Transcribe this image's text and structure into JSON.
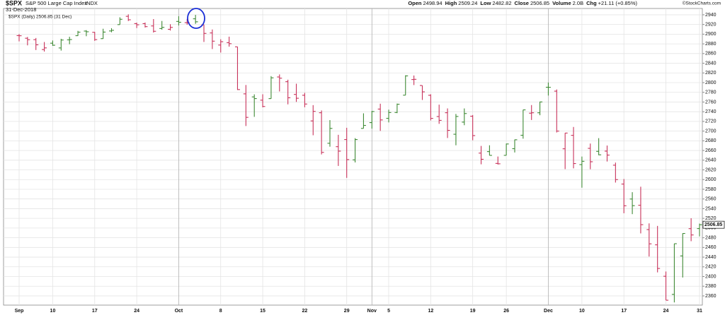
{
  "chart_data": {
    "type": "ohlc",
    "title": "S&P 500 Large Cap Index",
    "exchange": "INDX",
    "date": "31-Dec-2018",
    "quote": [
      {
        "label": "Open",
        "value": "2498.94"
      },
      {
        "label": "High",
        "value": "2509.24"
      },
      {
        "label": "Low",
        "value": "2482.82"
      },
      {
        "label": "Close",
        "value": "2506.85"
      },
      {
        "label": "Volume",
        "value": "2.0B"
      },
      {
        "label": "Chg",
        "value": "+21.11 (+0.85%)"
      }
    ],
    "credit": "©StockCharts.com",
    "legend": "$SPX (Daily) 2506.85 (31 Dec)",
    "up_color": "#3f8a35",
    "down_color": "#c8325a",
    "categories": [
      "Sep",
      null,
      null,
      null,
      "10",
      null,
      null,
      null,
      null,
      "17",
      null,
      null,
      null,
      null,
      "24",
      null,
      null,
      null,
      null,
      "Oct",
      null,
      null,
      null,
      null,
      "8",
      null,
      null,
      null,
      null,
      "15",
      null,
      null,
      null,
      null,
      "22",
      null,
      null,
      null,
      null,
      "29",
      null,
      null,
      "Nov",
      null,
      "5",
      null,
      null,
      null,
      null,
      "12",
      null,
      null,
      null,
      null,
      "19",
      null,
      null,
      null,
      "26",
      null,
      null,
      null,
      null,
      "Dec",
      null,
      null,
      null,
      "10",
      null,
      null,
      null,
      null,
      "17",
      null,
      null,
      null,
      null,
      "24",
      null,
      null,
      null,
      "31"
    ],
    "month_starts": [
      "Oct",
      "Nov",
      "Dec"
    ],
    "series": [
      {
        "name": "$SPX",
        "open": [
          2896.96,
          2891.59,
          2888.64,
          2868.26,
          2881.39,
          2871.57,
          2888.29,
          2896.85,
          2906.38,
          2903.83,
          2890.74,
          2906.6,
          2919.73,
          2936.76,
          2921.83,
          2921.75,
          2916.98,
          2911.65,
          2910.03,
          2926.29,
          2923.8,
          2931.69,
          2919.35,
          2902.54,
          2877.53,
          2882.51,
          2873.9,
          2776.87,
          2770.54,
          2763.83,
          2767.05,
          2811.67,
          2802,
          2775.66,
          2773.94,
          2721.03,
          2737.87,
          2674.88,
          2667.86,
          2682.65,
          2640.68,
          2705.6,
          2717.58,
          2745.45,
          2726.37,
          2738.4,
          2774.13,
          2806.38,
          2794.1,
          2773.93,
          2730.05,
          2737.9,
          2693.52,
          2718.54,
          2730.74,
          2654.6,
          2657.74,
          2633.36,
          2649.97,
          2663.75,
          2691.45,
          2736.97,
          2737.76,
          2790.5,
          2782.43,
          2663.51,
          2691.26,
          2630.86,
          2664.44,
          2658.23,
          2658.7,
          2629.68,
          2590.75,
          2559.9,
          2547.05,
          2496.77,
          2465.38,
          2400.56,
          2363.12,
          2442.5,
          2498.77,
          2498.94
        ],
        "high": [
          2900.18,
          2894.21,
          2892.05,
          2883.81,
          2886.93,
          2890.43,
          2894.65,
          2906.76,
          2908.3,
          2904.65,
          2911.17,
          2912.36,
          2934.8,
          2940.91,
          2923.79,
          2923.95,
          2931.15,
          2927.22,
          2920.53,
          2937.06,
          2931.42,
          2939.86,
          2919.78,
          2909.64,
          2889.45,
          2894.83,
          2874.02,
          2795.14,
          2775.77,
          2775.99,
          2813.46,
          2816.94,
          2806.04,
          2797.77,
          2778.94,
          2753.59,
          2742.59,
          2722.7,
          2692.38,
          2706.85,
          2685.43,
          2736.69,
          2741.67,
          2756.55,
          2744.27,
          2756.82,
          2815.15,
          2814.75,
          2794.1,
          2775.99,
          2754.6,
          2746.8,
          2735.38,
          2746.75,
          2733.16,
          2669.44,
          2670.73,
          2647.55,
          2674.35,
          2682.53,
          2744,
          2753.75,
          2760.88,
          2800.18,
          2785.93,
          2696.15,
          2708.54,
          2647.51,
          2674.35,
          2685.44,
          2670.19,
          2635.07,
          2601.13,
          2573.99,
          2585.29,
          2509.63,
          2504.41,
          2410.34,
          2467.76,
          2489.1,
          2520.27,
          2509.24
        ],
        "low": [
          2885.13,
          2876.92,
          2867.29,
          2864.12,
          2875.94,
          2866.17,
          2879.2,
          2896.39,
          2895.77,
          2886.16,
          2890.43,
          2903.82,
          2919.73,
          2927.11,
          2912.63,
          2913.7,
          2903.28,
          2909.27,
          2907.5,
          2917.91,
          2919.37,
          2921.36,
          2883.92,
          2869.29,
          2862.08,
          2874.27,
          2784.86,
          2710.51,
          2729.44,
          2749.03,
          2766.91,
          2781.81,
          2755.18,
          2760.27,
          2749.22,
          2691.43,
          2651.89,
          2667.84,
          2628.16,
          2603.54,
          2635.34,
          2705.6,
          2705.06,
          2700.44,
          2717.94,
          2737.08,
          2774.13,
          2794.99,
          2764.24,
          2722,
          2714.98,
          2685.75,
          2670.75,
          2712.16,
          2681.09,
          2631.52,
          2649.82,
          2631.09,
          2649.97,
          2655.89,
          2684.38,
          2722.94,
          2732.76,
          2773.38,
          2697.18,
          2621.53,
          2623.14,
          2583.23,
          2621.3,
          2650.26,
          2637.27,
          2593.84,
          2530.54,
          2528.71,
          2488.96,
          2441.18,
          2408.55,
          2351.1,
          2346.58,
          2397.94,
          2472.89,
          2482.82
        ],
        "close": [
          2896.72,
          2888.6,
          2878.05,
          2871.68,
          2877.13,
          2887.89,
          2888.92,
          2904.18,
          2904.98,
          2888.8,
          2904.31,
          2907.95,
          2930.75,
          2929.67,
          2919.37,
          2915.56,
          2905.97,
          2914,
          2913.98,
          2924.59,
          2923.43,
          2925.51,
          2901.61,
          2885.57,
          2884.43,
          2880.34,
          2785.68,
          2728.37,
          2767.13,
          2750.79,
          2809.92,
          2809.21,
          2768.78,
          2767.78,
          2755.88,
          2740.69,
          2656.1,
          2705.57,
          2658.69,
          2641.25,
          2682.63,
          2711.74,
          2740.37,
          2723.06,
          2738.31,
          2755.45,
          2813.89,
          2806.83,
          2781.01,
          2726.22,
          2722.18,
          2701.58,
          2730.2,
          2736.27,
          2690.73,
          2641.89,
          2649.93,
          2632.56,
          2673.45,
          2682.17,
          2743.79,
          2737.8,
          2760.17,
          2790.37,
          2700.06,
          2695.95,
          2633.08,
          2637.72,
          2636.78,
          2651.07,
          2650.54,
          2599.95,
          2545.94,
          2546.16,
          2506.96,
          2467.42,
          2416.62,
          2351.1,
          2467.7,
          2488.83,
          2485.74,
          2506.85
        ]
      }
    ],
    "ylim": [
      2341,
      2953
    ],
    "yticks": [
      2360,
      2380,
      2400,
      2420,
      2440,
      2460,
      2480,
      2500,
      2520,
      2540,
      2560,
      2580,
      2600,
      2620,
      2640,
      2660,
      2680,
      2700,
      2720,
      2740,
      2760,
      2780,
      2800,
      2820,
      2840,
      2860,
      2880,
      2900,
      2920,
      2940
    ],
    "grid": true
  }
}
